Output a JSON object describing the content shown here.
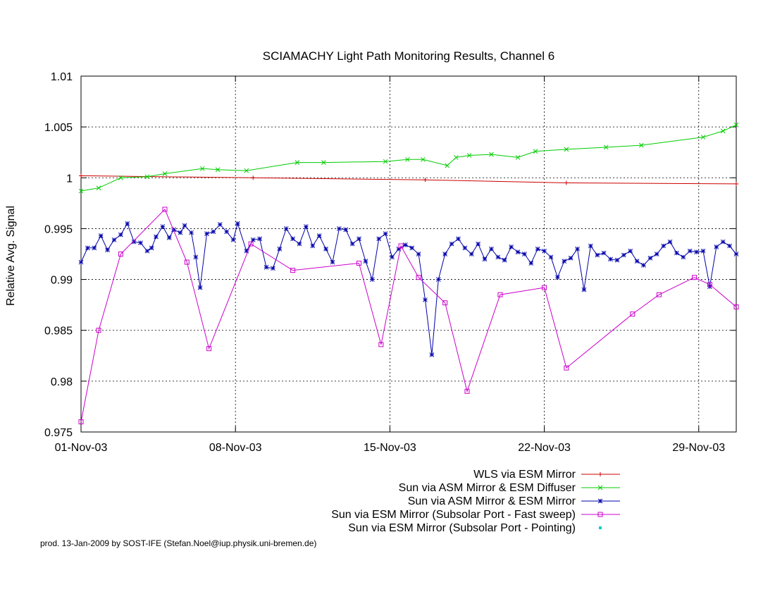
{
  "chart_data": {
    "type": "line",
    "title": "SCIAMACHY Light Path Monitoring Results, Channel 6",
    "xlabel": "",
    "ylabel": "Relative Avg. Signal",
    "xlim": [
      0,
      29.7
    ],
    "ylim": [
      0.975,
      1.01
    ],
    "grid": true,
    "legend_position": "bottom-right",
    "x_ticks": [
      {
        "x": 0,
        "label": "01-Nov-03"
      },
      {
        "x": 7,
        "label": "08-Nov-03"
      },
      {
        "x": 14,
        "label": "15-Nov-03"
      },
      {
        "x": 21,
        "label": "22-Nov-03"
      },
      {
        "x": 28,
        "label": "29-Nov-03"
      }
    ],
    "y_ticks": [
      {
        "y": 0.975,
        "label": "0.975"
      },
      {
        "y": 0.98,
        "label": "0.98"
      },
      {
        "y": 0.985,
        "label": "0.985"
      },
      {
        "y": 0.99,
        "label": "0.99"
      },
      {
        "y": 0.995,
        "label": "0.995"
      },
      {
        "y": 1.0,
        "label": "1"
      },
      {
        "y": 1.005,
        "label": "1.005"
      },
      {
        "y": 1.01,
        "label": "1.01"
      }
    ],
    "series": [
      {
        "name": "WLS via ESM Mirror",
        "color": "#cc0000",
        "marker": "plus",
        "x": [
          0,
          7.8,
          15.6,
          22.0,
          29.7
        ],
        "y": [
          1.0002,
          1.0,
          0.9998,
          0.9995,
          0.9994
        ]
      },
      {
        "name": "Sun via ASM Mirror & ESM Diffuser",
        "color": "#00cc00",
        "marker": "x",
        "x": [
          0,
          0.8,
          1.8,
          3.0,
          3.8,
          5.5,
          6.2,
          7.5,
          9.8,
          11.0,
          13.8,
          14.8,
          15.5,
          16.6,
          17.0,
          17.6,
          18.6,
          19.8,
          20.6,
          22.0,
          23.8,
          25.4,
          28.2,
          29.1,
          29.7
        ],
        "y": [
          0.9987,
          0.999,
          1.0,
          1.0001,
          1.0004,
          1.0009,
          1.0008,
          1.0007,
          1.0015,
          1.0015,
          1.0016,
          1.0018,
          1.0018,
          1.0012,
          1.002,
          1.0022,
          1.0023,
          1.002,
          1.0026,
          1.0028,
          1.003,
          1.0032,
          1.004,
          1.0046,
          1.0052
        ]
      },
      {
        "name": "Sun via ASM Mirror & ESM Diffuser",
        "color": "#00cc00",
        "marker": "x",
        "hidden_legend": true,
        "x": [],
        "y": []
      },
      {
        "name": "Sun via ASM Mirror & ESM Mirror",
        "color": "#0000aa",
        "marker": "star",
        "x": [
          0.0,
          0.3,
          0.6,
          0.9,
          1.2,
          1.5,
          1.8,
          2.1,
          2.4,
          2.7,
          3.0,
          3.2,
          3.4,
          3.7,
          4.0,
          4.2,
          4.5,
          4.7,
          5.0,
          5.2,
          5.4,
          5.7,
          6.0,
          6.3,
          6.6,
          6.9,
          7.1,
          7.5,
          7.8,
          8.1,
          8.4,
          8.7,
          9.0,
          9.3,
          9.6,
          9.9,
          10.2,
          10.5,
          10.8,
          11.1,
          11.4,
          11.7,
          12.0,
          12.3,
          12.6,
          12.9,
          13.2,
          13.5,
          13.8,
          14.1,
          14.4,
          14.7,
          15.0,
          15.3,
          15.6,
          15.9,
          16.2,
          16.5,
          16.8,
          17.1,
          17.4,
          17.7,
          18.0,
          18.3,
          18.6,
          18.9,
          19.2,
          19.5,
          19.8,
          20.1,
          20.4,
          20.7,
          21.0,
          21.3,
          21.6,
          21.9,
          22.2,
          22.5,
          22.8,
          23.1,
          23.4,
          23.7,
          24.0,
          24.3,
          24.6,
          24.9,
          25.2,
          25.5,
          25.8,
          26.1,
          26.4,
          26.7,
          27.0,
          27.3,
          27.6,
          27.9,
          28.2,
          28.5,
          28.8,
          29.1,
          29.4,
          29.7
        ],
        "y": [
          0.9917,
          0.9931,
          0.9931,
          0.9943,
          0.9929,
          0.9939,
          0.9944,
          0.9955,
          0.9937,
          0.9936,
          0.9928,
          0.9931,
          0.9942,
          0.9952,
          0.9941,
          0.9949,
          0.9946,
          0.9953,
          0.9946,
          0.9922,
          0.9892,
          0.9945,
          0.9947,
          0.9954,
          0.9947,
          0.9939,
          0.9955,
          0.9928,
          0.9939,
          0.994,
          0.9912,
          0.9911,
          0.993,
          0.995,
          0.994,
          0.9935,
          0.9952,
          0.9933,
          0.9943,
          0.993,
          0.9917,
          0.995,
          0.9949,
          0.9935,
          0.994,
          0.9918,
          0.99,
          0.994,
          0.9945,
          0.9922,
          0.993,
          0.9934,
          0.9931,
          0.9925,
          0.988,
          0.9826,
          0.99,
          0.9925,
          0.9935,
          0.994,
          0.9931,
          0.9925,
          0.9935,
          0.992,
          0.993,
          0.9922,
          0.9919,
          0.9932,
          0.9927,
          0.9925,
          0.9916,
          0.993,
          0.9928,
          0.9922,
          0.9902,
          0.9918,
          0.9921,
          0.993,
          0.989,
          0.9933,
          0.9924,
          0.9926,
          0.992,
          0.9919,
          0.9924,
          0.9928,
          0.9918,
          0.9914,
          0.9921,
          0.9925,
          0.9933,
          0.9937,
          0.9926,
          0.9922,
          0.9928,
          0.9927,
          0.9928,
          0.9893,
          0.9932,
          0.9937,
          0.9933,
          0.9925
        ]
      },
      {
        "name": "Sun via ESM Mirror (Subsolar Port - Fast sweep)",
        "color": "#cc00cc",
        "marker": "square",
        "x": [
          0.0,
          0.8,
          1.8,
          3.8,
          4.8,
          5.8,
          7.7,
          9.6,
          12.6,
          13.6,
          14.5,
          15.3,
          16.5,
          17.5,
          19.0,
          21.0,
          22.0,
          25.0,
          26.2,
          27.8,
          28.5,
          29.7
        ],
        "y": [
          0.976,
          0.985,
          0.9925,
          0.9969,
          0.9917,
          0.9832,
          0.9935,
          0.9909,
          0.9916,
          0.9836,
          0.9933,
          0.9902,
          0.9877,
          0.979,
          0.9885,
          0.9892,
          0.9813,
          0.9866,
          0.9885,
          0.9902,
          0.9895,
          0.9873
        ]
      },
      {
        "name": "Sun via ESM Mirror (Subsolar Port - Pointing)",
        "color": "#00cccc",
        "marker": "dot",
        "x": [],
        "y": []
      }
    ],
    "footer": "prod. 13-Jan-2009 by SOST-IFE (Stefan.Noel@iup.physik.uni-bremen.de)"
  }
}
